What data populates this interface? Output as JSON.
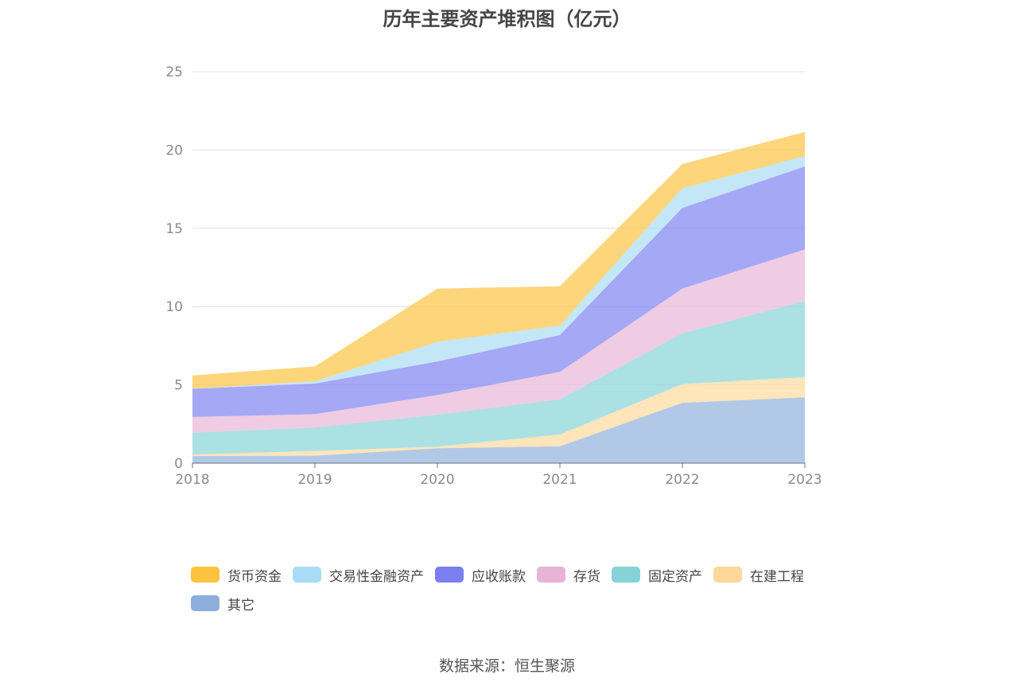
{
  "chart_data": {
    "type": "area",
    "stacked": true,
    "title": "历年主要资产堆积图（亿元）",
    "categories": [
      "2018",
      "2019",
      "2020",
      "2021",
      "2022",
      "2023"
    ],
    "ylim": [
      0,
      25
    ],
    "yticks": [
      0,
      5,
      10,
      15,
      20,
      25
    ],
    "xlabel": "",
    "ylabel": "",
    "grid": true,
    "legend_position": "bottom",
    "series": [
      {
        "name": "其它",
        "color": "#8eaedb",
        "values": [
          0.45,
          0.48,
          0.95,
          1.08,
          3.85,
          4.2
        ]
      },
      {
        "name": "在建工程",
        "color": "#fdd89a",
        "values": [
          0.1,
          0.3,
          0.1,
          0.75,
          1.2,
          1.3
        ]
      },
      {
        "name": "固定资产",
        "color": "#85d3d6",
        "values": [
          1.4,
          1.5,
          2.05,
          2.25,
          3.25,
          4.85
        ]
      },
      {
        "name": "存货",
        "color": "#e8b4d5",
        "values": [
          1.0,
          0.85,
          1.25,
          1.75,
          2.85,
          3.3
        ]
      },
      {
        "name": "应收账款",
        "color": "#7b7ff0",
        "values": [
          1.8,
          1.95,
          2.15,
          2.35,
          5.15,
          5.3
        ]
      },
      {
        "name": "交易性金融资产",
        "color": "#a8dcf5",
        "values": [
          0.0,
          0.15,
          1.25,
          0.6,
          1.25,
          0.65
        ]
      },
      {
        "name": "货币资金",
        "color": "#fcc33e",
        "values": [
          0.85,
          0.95,
          3.4,
          2.52,
          1.55,
          1.55
        ]
      }
    ],
    "legend_order": [
      "货币资金",
      "交易性金融资产",
      "应收账款",
      "存货",
      "固定资产",
      "在建工程",
      "其它"
    ]
  },
  "source": "数据来源：恒生聚源"
}
